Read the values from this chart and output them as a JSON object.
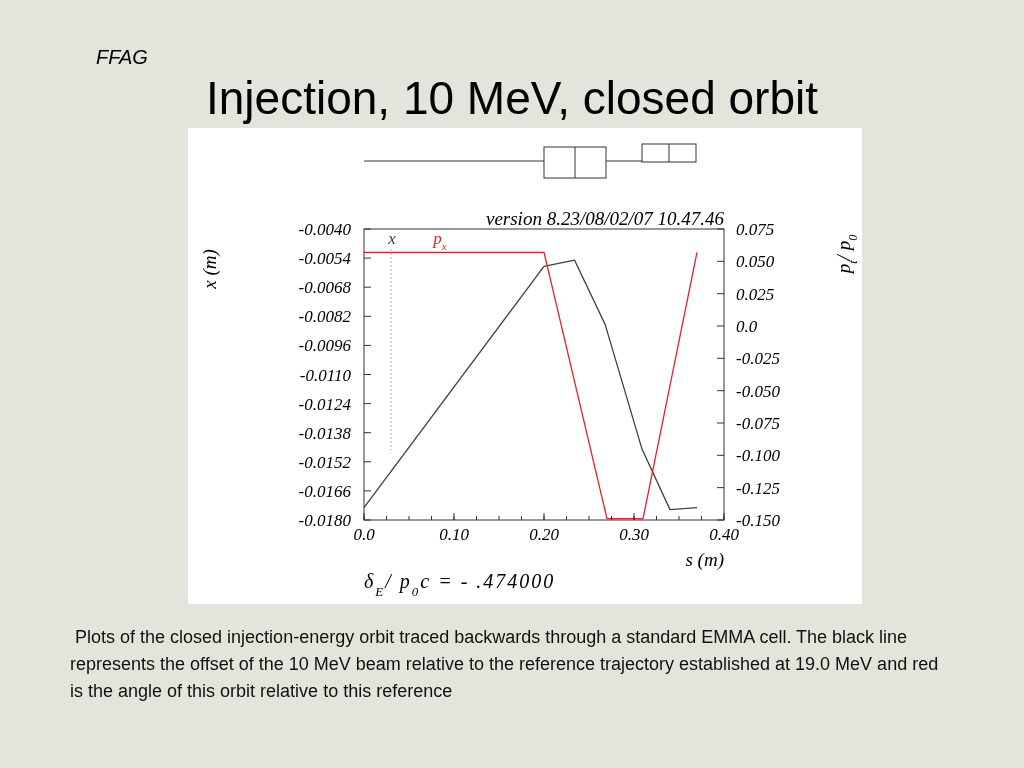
{
  "chart_data": {
    "type": "line",
    "title": "Injection, 10 MeV, closed orbit",
    "xlabel": "s (m)",
    "ylabel": "x (m)",
    "y2label": "p$_{t}$/ p$_{0}$",
    "annotations": [
      "FFAG",
      "version 8.23/08/02/07   10.47.46",
      "δ$_{E}$/ p$_{0}$c  =  - .474000",
      "Plots of the closed injection-energy orbit traced backwards through a standard EMMA cell.  The black line represents the offset of the 10 MeV beam relative to the reference trajectory established at 19.0 MeV and red is the angle of this orbit relative to this reference"
    ],
    "series": [
      {
        "name": "x",
        "color": "#404040",
        "x": [
          0.0,
          0.2,
          0.234,
          0.268,
          0.309,
          0.34,
          0.37
        ],
        "values": [
          -0.0174,
          -0.0058,
          -0.0055,
          -0.0086,
          -0.0146,
          -0.0175,
          -0.0174
        ]
      },
      {
        "name": "p$_{x}$",
        "color": "#e8202a",
        "axis": "y2",
        "x": [
          0.0,
          0.2,
          0.27,
          0.31,
          0.37
        ],
        "values": [
          0.057,
          0.057,
          -0.149,
          -0.149,
          0.057
        ]
      }
    ],
    "xlim": [
      0.0,
      0.4
    ],
    "xticks": [
      {
        "value": 0,
        "label": "0.0"
      },
      {
        "value": 0.1,
        "label": "0.10"
      },
      {
        "value": 0.2,
        "label": "0.20"
      },
      {
        "value": 0.3,
        "label": "0.30"
      },
      {
        "value": 0.4,
        "label": "0.40"
      }
    ],
    "ylim": [
      -0.018,
      -0.004
    ],
    "yticks": [
      {
        "value": -0.004,
        "label": "-0.0040"
      },
      {
        "value": -0.0054,
        "label": "-0.0054"
      },
      {
        "value": -0.0068,
        "label": "-0.0068"
      },
      {
        "value": -0.0082,
        "label": "-0.0082"
      },
      {
        "value": -0.0096,
        "label": "-0.0096"
      },
      {
        "value": -0.011,
        "label": "-0.0110"
      },
      {
        "value": -0.0124,
        "label": "-0.0124"
      },
      {
        "value": -0.0138,
        "label": "-0.0138"
      },
      {
        "value": -0.0152,
        "label": "-0.0152"
      },
      {
        "value": -0.0166,
        "label": "-0.0166"
      },
      {
        "value": -0.018,
        "label": "-0.0180"
      }
    ],
    "y2lim": [
      -0.15,
      0.075
    ],
    "y2ticks": [
      0.075,
      {
        "value": 0.05,
        "label": "0.050"
      },
      0.025,
      {
        "value": 0,
        "label": "0.0"
      },
      -0.025,
      {
        "value": -0.05,
        "label": "-0.050"
      },
      -0.075,
      {
        "value": -0.1,
        "label": "-0.100"
      },
      -0.125,
      {
        "value": -0.15,
        "label": "-0.150"
      }
    ],
    "ref_lines": [
      {
        "axis": "x",
        "value": 0.03,
        "color": "#999999",
        "line_style": "dotted"
      }
    ],
    "legend": "top left",
    "grid": false,
    "marker": "none",
    "line_style": "solid"
  }
}
